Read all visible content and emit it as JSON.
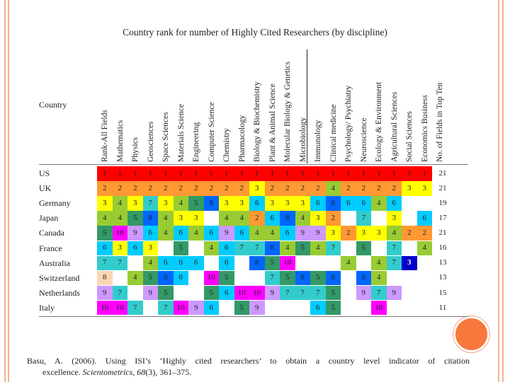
{
  "title": "Country rank for number of Highly Cited Researchers (by discipline)",
  "country_header": "Country",
  "columns": [
    "Rank-All Fields",
    "Mathematics",
    "Physics",
    "Geosciences",
    "Space Sciences",
    "Materials Science",
    "Engineering",
    "Computer Science",
    "Chemistry",
    "Pharmacology",
    "Biology & Biochemistry",
    "Plant & Animal Science",
    "Molecular Biology & Genetics",
    "Microbiology",
    "Immunology",
    "Clinical medicine",
    "Psychology/ Psychiatry",
    "Neuroscience",
    "Ecology & Environment",
    "Agricultural Sciences",
    "Social Sciences",
    "Economics Business",
    "No. of Fields in Top Ten"
  ],
  "rank_colors": {
    "1": "#ff0000",
    "2": "#ff9933",
    "3": "#ffff00",
    "4": "#99cc33",
    "5": "#339966",
    "6": "#00ccff",
    "7": "#33cccc",
    "8": "#0066ff",
    "9": "#cc99ff",
    "10": "#ff00ff"
  },
  "special_colors": {
    "australia_social_sciences_bg": "#0000cc",
    "switzerland_rank_bg": "#fcd5b4"
  },
  "rows": [
    {
      "country": "US",
      "ranks": [
        "1",
        "1",
        "1",
        "1",
        "1",
        "1",
        "1",
        "1",
        "1",
        "1",
        "1",
        "1",
        "1",
        "1",
        "1",
        "1",
        "1",
        "1",
        "1",
        "1",
        "1",
        "1",
        "21"
      ]
    },
    {
      "country": "UK",
      "ranks": [
        "2",
        "2",
        "2",
        "2",
        "2",
        "2",
        "2",
        "2",
        "2",
        "2",
        "3",
        "2",
        "2",
        "2",
        "2",
        "4",
        "2",
        "2",
        "2",
        "2",
        "3",
        "3",
        "21"
      ]
    },
    {
      "country": "Germany",
      "ranks": [
        "3",
        "4",
        "3",
        "7",
        "3",
        "4",
        "5",
        "8",
        "3",
        "3",
        "6",
        "3",
        "3",
        "3",
        "6",
        "8",
        "6",
        "6",
        "4",
        "6",
        "",
        "",
        "19"
      ]
    },
    {
      "country": "Japan",
      "ranks": [
        "4",
        "4",
        "5",
        "8",
        "4",
        "3",
        "3",
        "",
        "4",
        "4",
        "2",
        "6",
        "8",
        "4",
        "3",
        "2",
        "",
        "7",
        "",
        "3",
        "",
        "6",
        "17"
      ]
    },
    {
      "country": "Canada",
      "ranks": [
        "5",
        "10",
        "9",
        "6",
        "4",
        "6",
        "4",
        "6",
        "9",
        "6",
        "4",
        "4",
        "6",
        "9",
        "9",
        "3",
        "2",
        "3",
        "3",
        "4",
        "2",
        "2",
        "21"
      ]
    },
    {
      "country": "France",
      "ranks": [
        "6",
        "3",
        "6",
        "3",
        "",
        "5",
        "",
        "4",
        "6",
        "7",
        "7",
        "8",
        "4",
        "5",
        "4",
        "7",
        "",
        "5",
        "",
        "7",
        "",
        "4",
        "16"
      ]
    },
    {
      "country": "Australia",
      "ranks": [
        "7",
        "7",
        "",
        "4",
        "6",
        "6",
        "6",
        "",
        "6",
        "",
        "8",
        "5",
        "10",
        "",
        "",
        "",
        "4",
        "",
        "4",
        "7",
        "3",
        "",
        "13"
      ]
    },
    {
      "country": "Switzerland",
      "ranks": [
        "8",
        "",
        "4",
        "5",
        "8",
        "6",
        "",
        "10",
        "5",
        "",
        "",
        "7",
        "5",
        "8",
        "5",
        "8",
        "",
        "8",
        "4",
        "",
        "",
        "",
        "13"
      ]
    },
    {
      "country": "Netherlands",
      "ranks": [
        "9",
        "7",
        "",
        "9",
        "5",
        "",
        "",
        "5",
        "6",
        "10",
        "10",
        "9",
        "7",
        "7",
        "7",
        "5",
        "",
        "9",
        "7",
        "9",
        "",
        "",
        "15"
      ]
    },
    {
      "country": "Italy",
      "ranks": [
        "10",
        "10",
        "7",
        "",
        "7",
        "10",
        "9",
        "6",
        "",
        "5",
        "9",
        "",
        "",
        "",
        "6",
        "5",
        "",
        "",
        "10",
        "",
        "",
        "",
        "11"
      ]
    }
  ],
  "citation": {
    "line1": "Basu, A. (2006). Using ISI’s ‘Highly cited researchers’ to obtain a country level indicator of citation",
    "line2_prefix": "excellence. ",
    "journal": "Scientometrics,",
    "volume": " 68",
    "pages": "(3), 361–375."
  }
}
